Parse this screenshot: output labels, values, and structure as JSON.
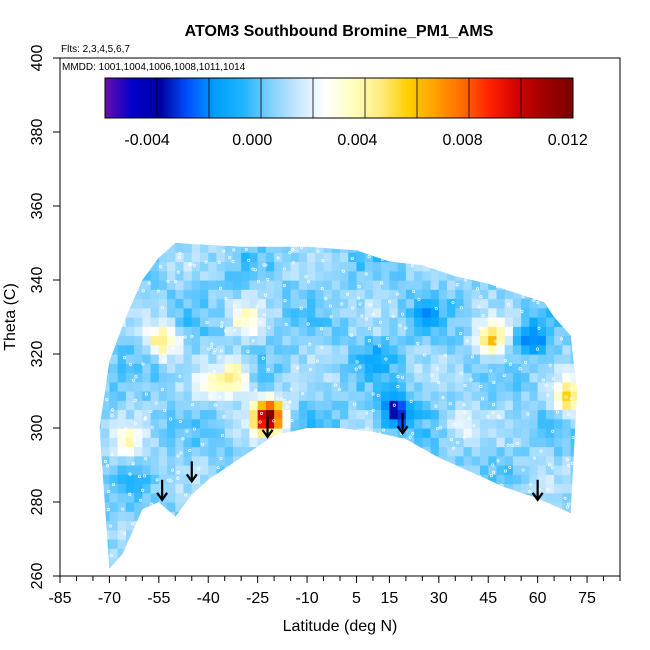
{
  "chart_data": {
    "type": "heatmap",
    "title": "ATOM3 Southbound Bromine_PM1_AMS",
    "annotations": {
      "flights": "Flts: 2,3,4,5,6,7",
      "dates": "MMDD: 1001,1004,1006,1008,1011,1014"
    },
    "xlabel": "Latitude (deg N)",
    "ylabel": "Theta (C)",
    "xlim": [
      -85,
      85
    ],
    "ylim": [
      260,
      400
    ],
    "x_ticks": [
      -85,
      -70,
      -55,
      -40,
      -25,
      -10,
      5,
      15,
      30,
      45,
      60,
      75
    ],
    "x_tick_labels": [
      "-85",
      "-70",
      "-55",
      "-40",
      "-25",
      "-10",
      "5",
      "15",
      "30",
      "45",
      "60",
      "75"
    ],
    "x_minor_ticks": [
      -80,
      -75,
      -65,
      -60,
      -50,
      -45,
      -35,
      -30,
      -20,
      -15,
      -5,
      0,
      10,
      20,
      25,
      35,
      40,
      50,
      55,
      65,
      70,
      80,
      85
    ],
    "y_ticks": [
      260,
      280,
      300,
      320,
      340,
      360,
      380,
      400
    ],
    "y_tick_labels": [
      "260",
      "280",
      "300",
      "320",
      "340",
      "360",
      "380",
      "400"
    ],
    "colorbar": {
      "range": [
        -0.0056,
        0.0122
      ],
      "ticks": [
        -0.004,
        0.0,
        0.004,
        0.008,
        0.012
      ],
      "tick_labels": [
        "-0.004",
        "0.000",
        "0.004",
        "0.008",
        "0.012"
      ],
      "colors": [
        "#6a0dad",
        "#0000cd",
        "#0000a0",
        "#0050ff",
        "#00a0ff",
        "#1eb4ff",
        "#7fd0ff",
        "#c8e8ff",
        "#ffffff",
        "#ffffc0",
        "#ffeb80",
        "#ffd000",
        "#ffa000",
        "#ff6a00",
        "#ff2000",
        "#d00000",
        "#a00000",
        "#7a0000"
      ]
    },
    "data_region": {
      "bottom_boundary": [
        [
          -70,
          262
        ],
        [
          -66,
          266
        ],
        [
          -60,
          278
        ],
        [
          -55,
          280
        ],
        [
          -50,
          276
        ],
        [
          -45,
          282
        ],
        [
          -40,
          286
        ],
        [
          -30,
          292
        ],
        [
          -20,
          298
        ],
        [
          -10,
          300
        ],
        [
          0,
          300
        ],
        [
          10,
          299
        ],
        [
          20,
          297
        ],
        [
          30,
          292
        ],
        [
          40,
          288
        ],
        [
          50,
          284
        ],
        [
          60,
          281
        ],
        [
          70,
          277
        ]
      ],
      "top_boundary": [
        [
          -73,
          300
        ],
        [
          -70,
          318
        ],
        [
          -65,
          330
        ],
        [
          -60,
          340
        ],
        [
          -55,
          346
        ],
        [
          -50,
          350
        ],
        [
          -30,
          349
        ],
        [
          -10,
          349
        ],
        [
          5,
          348
        ],
        [
          15,
          345
        ],
        [
          25,
          344
        ],
        [
          35,
          341
        ],
        [
          45,
          339
        ],
        [
          55,
          336
        ],
        [
          62,
          334
        ],
        [
          65,
          330
        ],
        [
          70,
          325
        ],
        [
          72,
          310
        ]
      ],
      "background_value": 0.0008
    },
    "features": [
      {
        "lat": -23,
        "theta": 302,
        "value": 0.0118
      },
      {
        "lat": 16,
        "theta": 303,
        "value": -0.0042
      },
      {
        "lat": 57,
        "theta": 323,
        "value": -0.002
      },
      {
        "lat": -33,
        "theta": 313,
        "value": 0.0048
      },
      {
        "lat": 45,
        "theta": 323,
        "value": 0.0058
      },
      {
        "lat": -55,
        "theta": 323,
        "value": 0.0052
      },
      {
        "lat": 68,
        "theta": 307,
        "value": 0.006
      },
      {
        "lat": -40,
        "theta": 310,
        "value": 0.0034
      },
      {
        "lat": 35,
        "theta": 300,
        "value": 0.003
      },
      {
        "lat": -30,
        "theta": 328,
        "value": 0.0034
      },
      {
        "lat": -65,
        "theta": 295,
        "value": 0.0032
      },
      {
        "lat": 10,
        "theta": 318,
        "value": -0.0008
      },
      {
        "lat": 25,
        "theta": 330,
        "value": -0.0006
      }
    ],
    "arrows": [
      {
        "lat": -54,
        "theta": 286
      },
      {
        "lat": -45,
        "theta": 291
      },
      {
        "lat": -22,
        "theta": 303
      },
      {
        "lat": 19,
        "theta": 304
      },
      {
        "lat": 60,
        "theta": 286
      }
    ],
    "grid": false
  }
}
